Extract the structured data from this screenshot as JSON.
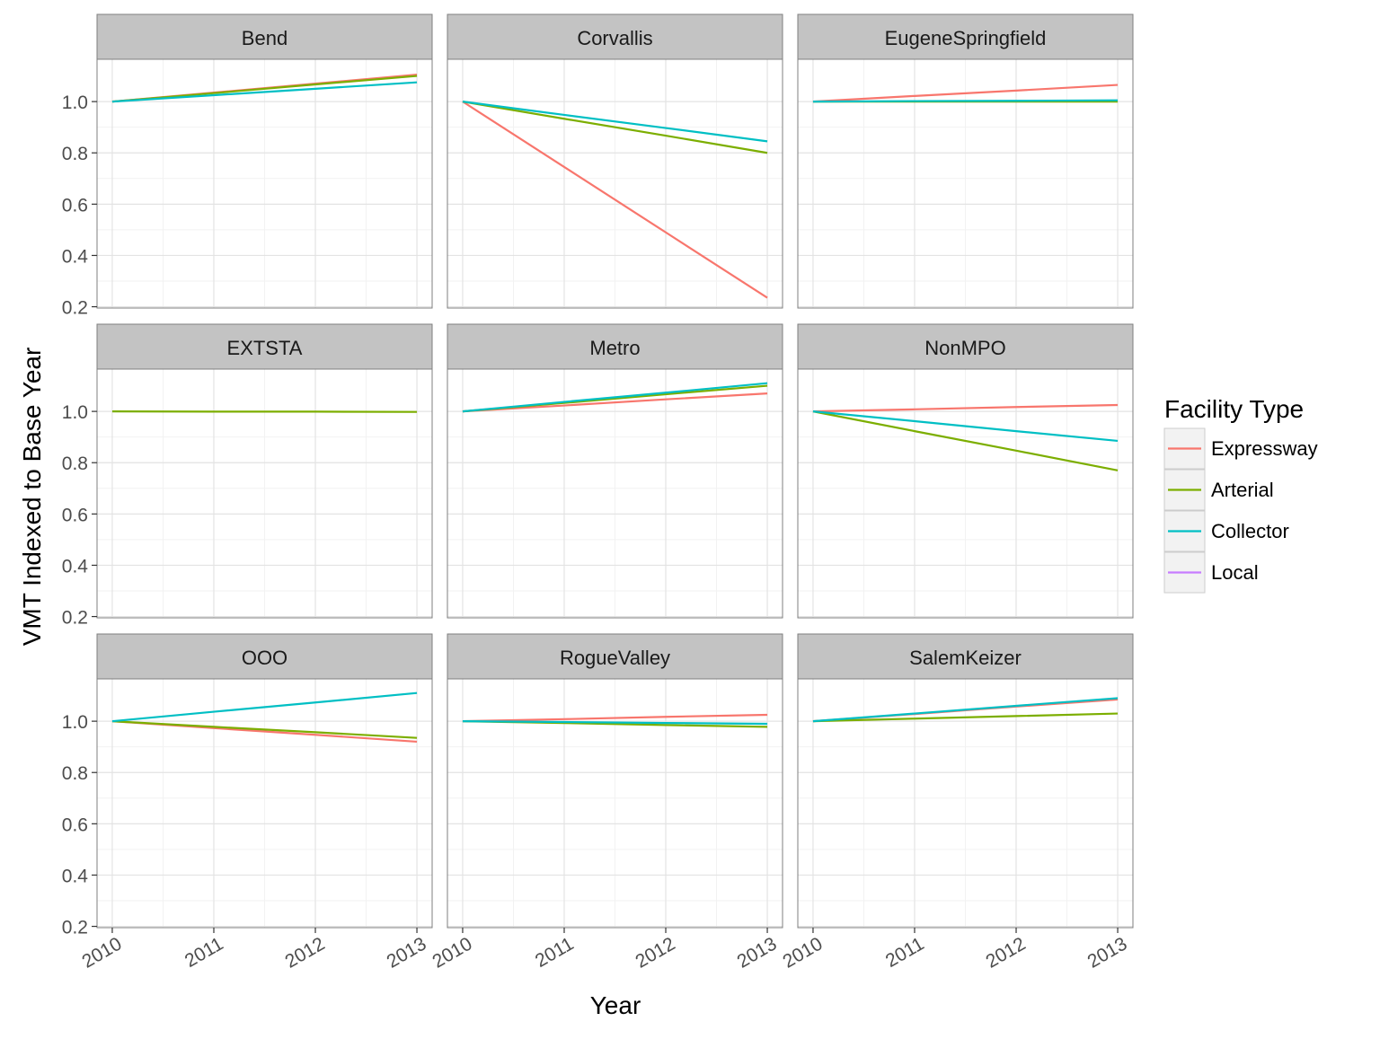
{
  "chart_data": {
    "type": "line",
    "xlabel": "Year",
    "ylabel": "VMT Indexed to Base Year",
    "x": [
      2010,
      2011,
      2012,
      2013
    ],
    "x_tick_labels": [
      "2010",
      "2011",
      "2012",
      "2013"
    ],
    "y_ticks": [
      0.2,
      0.4,
      0.6,
      0.8,
      1.0
    ],
    "y_tick_labels": [
      "0.2",
      "0.4",
      "0.6",
      "0.8",
      "1.0"
    ],
    "ylim": [
      0.195,
      1.165
    ],
    "xlim": [
      2009.85,
      2013.15
    ],
    "grid": true,
    "legend": {
      "title": "Facility Type",
      "position": "right",
      "entries": [
        {
          "name": "Expressway",
          "color": "#F8766D"
        },
        {
          "name": "Arterial",
          "color": "#7CAE00"
        },
        {
          "name": "Collector",
          "color": "#00BFC4"
        },
        {
          "name": "Local",
          "color": "#C77CFF"
        }
      ]
    },
    "panels": [
      {
        "title": "Bend",
        "series": [
          {
            "name": "Expressway",
            "values": [
              1.0,
              1.035,
              1.07,
              1.105
            ]
          },
          {
            "name": "Arterial",
            "values": [
              1.0,
              1.033,
              1.067,
              1.1
            ]
          },
          {
            "name": "Collector",
            "values": [
              1.0,
              1.025,
              1.05,
              1.075
            ]
          }
        ]
      },
      {
        "title": "Corvallis",
        "series": [
          {
            "name": "Expressway",
            "values": [
              1.0,
              0.745,
              0.49,
              0.235
            ]
          },
          {
            "name": "Arterial",
            "values": [
              1.0,
              0.933,
              0.867,
              0.8
            ]
          },
          {
            "name": "Collector",
            "values": [
              1.0,
              0.948,
              0.897,
              0.845
            ]
          }
        ]
      },
      {
        "title": "EugeneSpringfield",
        "series": [
          {
            "name": "Expressway",
            "values": [
              1.0,
              1.022,
              1.043,
              1.065
            ]
          },
          {
            "name": "Arterial",
            "values": [
              1.0,
              1.0,
              1.0,
              1.0
            ]
          },
          {
            "name": "Collector",
            "values": [
              1.0,
              1.002,
              1.003,
              1.005
            ]
          }
        ]
      },
      {
        "title": "EXTSTA",
        "series": [
          {
            "name": "Arterial",
            "values": [
              1.0,
              0.999,
              0.999,
              0.998
            ]
          }
        ]
      },
      {
        "title": "Metro",
        "series": [
          {
            "name": "Expressway",
            "values": [
              1.0,
              1.023,
              1.047,
              1.07
            ]
          },
          {
            "name": "Arterial",
            "values": [
              1.0,
              1.033,
              1.067,
              1.1
            ]
          },
          {
            "name": "Collector",
            "values": [
              1.0,
              1.037,
              1.073,
              1.11
            ]
          }
        ]
      },
      {
        "title": "NonMPO",
        "series": [
          {
            "name": "Expressway",
            "values": [
              1.0,
              1.008,
              1.017,
              1.025
            ]
          },
          {
            "name": "Arterial",
            "values": [
              1.0,
              0.923,
              0.847,
              0.77
            ]
          },
          {
            "name": "Collector",
            "values": [
              1.0,
              0.962,
              0.923,
              0.885
            ]
          }
        ]
      },
      {
        "title": "OOO",
        "series": [
          {
            "name": "Expressway",
            "values": [
              1.0,
              0.973,
              0.947,
              0.92
            ]
          },
          {
            "name": "Arterial",
            "values": [
              1.0,
              0.978,
              0.957,
              0.935
            ]
          },
          {
            "name": "Collector",
            "values": [
              1.0,
              1.037,
              1.073,
              1.11
            ]
          }
        ]
      },
      {
        "title": "RogueValley",
        "series": [
          {
            "name": "Expressway",
            "values": [
              1.0,
              1.008,
              1.017,
              1.025
            ]
          },
          {
            "name": "Arterial",
            "values": [
              1.0,
              0.993,
              0.985,
              0.978
            ]
          },
          {
            "name": "Collector",
            "values": [
              1.0,
              0.997,
              0.993,
              0.99
            ]
          }
        ]
      },
      {
        "title": "SalemKeizer",
        "series": [
          {
            "name": "Expressway",
            "values": [
              1.0,
              1.028,
              1.057,
              1.085
            ]
          },
          {
            "name": "Arterial",
            "values": [
              1.0,
              1.01,
              1.02,
              1.03
            ]
          },
          {
            "name": "Collector",
            "values": [
              1.0,
              1.03,
              1.06,
              1.09
            ]
          }
        ]
      }
    ]
  }
}
